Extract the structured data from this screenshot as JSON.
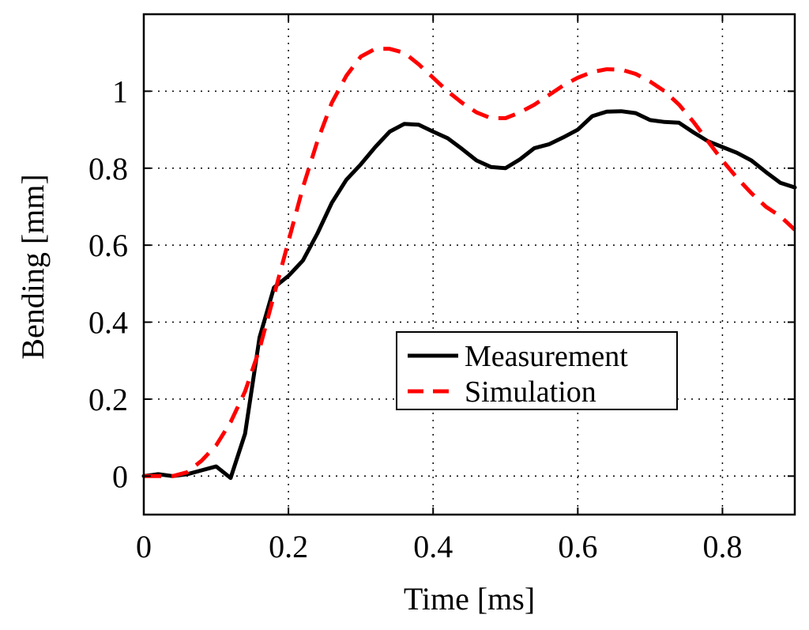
{
  "chart_data": {
    "type": "line",
    "title": "",
    "xlabel": "Time [ms]",
    "ylabel": "Bending [mm]",
    "xlim": [
      0,
      0.9
    ],
    "ylim": [
      -0.1,
      1.2
    ],
    "xticks": [
      0,
      0.2,
      0.4,
      0.6,
      0.8
    ],
    "xtick_labels": [
      "0",
      "0.2",
      "0.4",
      "0.6",
      "0.8"
    ],
    "yticks": [
      0,
      0.2,
      0.4,
      0.6,
      0.8,
      1
    ],
    "ytick_labels": [
      "0",
      "0.2",
      "0.4",
      "0.6",
      "0.8",
      "1"
    ],
    "grid": true,
    "legend_position": "center-right",
    "series": [
      {
        "name": "Measurement",
        "color": "#000000",
        "style": "solid",
        "x": [
          0,
          0.02,
          0.04,
          0.06,
          0.08,
          0.1,
          0.12,
          0.14,
          0.16,
          0.18,
          0.2,
          0.22,
          0.24,
          0.26,
          0.28,
          0.3,
          0.32,
          0.34,
          0.36,
          0.38,
          0.4,
          0.42,
          0.44,
          0.46,
          0.48,
          0.5,
          0.52,
          0.54,
          0.56,
          0.58,
          0.6,
          0.62,
          0.64,
          0.66,
          0.68,
          0.7,
          0.72,
          0.74,
          0.76,
          0.78,
          0.8,
          0.82,
          0.84,
          0.86,
          0.88,
          0.9
        ],
        "y": [
          0,
          0.005,
          0,
          0.005,
          0.015,
          0.025,
          -0.005,
          0.11,
          0.36,
          0.49,
          0.52,
          0.56,
          0.63,
          0.71,
          0.77,
          0.81,
          0.855,
          0.895,
          0.915,
          0.913,
          0.895,
          0.878,
          0.85,
          0.82,
          0.803,
          0.8,
          0.823,
          0.852,
          0.862,
          0.88,
          0.9,
          0.935,
          0.947,
          0.948,
          0.943,
          0.925,
          0.92,
          0.918,
          0.893,
          0.87,
          0.855,
          0.84,
          0.82,
          0.79,
          0.762,
          0.75
        ]
      },
      {
        "name": "Simulation",
        "color": "#ff0000",
        "style": "dashed",
        "x": [
          0,
          0.02,
          0.04,
          0.06,
          0.08,
          0.1,
          0.12,
          0.14,
          0.16,
          0.18,
          0.2,
          0.22,
          0.24,
          0.26,
          0.28,
          0.3,
          0.32,
          0.34,
          0.36,
          0.38,
          0.4,
          0.42,
          0.44,
          0.46,
          0.48,
          0.5,
          0.52,
          0.54,
          0.56,
          0.58,
          0.6,
          0.62,
          0.64,
          0.66,
          0.68,
          0.7,
          0.72,
          0.74,
          0.76,
          0.78,
          0.8,
          0.82,
          0.84,
          0.86,
          0.88,
          0.9
        ],
        "y": [
          0,
          0,
          0,
          0.01,
          0.04,
          0.08,
          0.14,
          0.22,
          0.33,
          0.47,
          0.61,
          0.75,
          0.87,
          0.97,
          1.04,
          1.09,
          1.11,
          1.11,
          1.1,
          1.07,
          1.035,
          1.0,
          0.97,
          0.945,
          0.93,
          0.93,
          0.945,
          0.965,
          0.99,
          1.015,
          1.035,
          1.05,
          1.057,
          1.056,
          1.045,
          1.025,
          1.0,
          0.965,
          0.92,
          0.87,
          0.82,
          0.775,
          0.735,
          0.7,
          0.675,
          0.64
        ]
      }
    ]
  }
}
